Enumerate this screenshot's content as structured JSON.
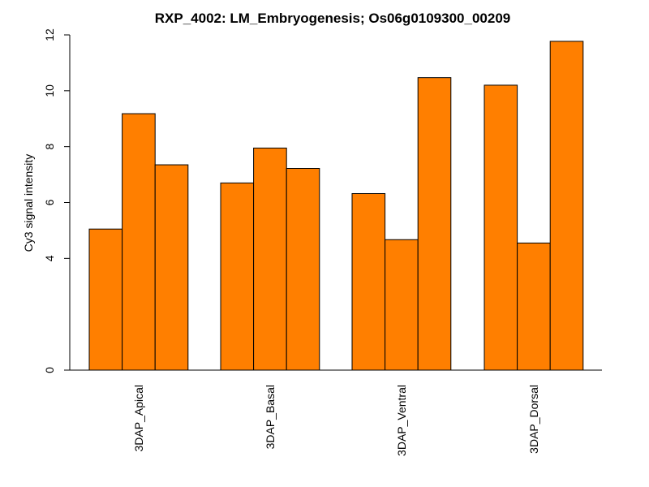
{
  "chart_data": {
    "type": "bar",
    "title": "RXP_4002: LM_Embryogenesis; Os06g0109300_00209",
    "xlabel": "",
    "ylabel": "Cy3 signal intensity",
    "ylim": [
      0,
      12
    ],
    "yticks": [
      0,
      4,
      6,
      8,
      10,
      12
    ],
    "grid": false,
    "bar_color": "#FF7F00",
    "bar_edge_color": "#000000",
    "categories": [
      "3DAP_Apical",
      "3DAP_Basal",
      "3DAP_Ventral",
      "3DAP_Dorsal"
    ],
    "values": [
      [
        5.05,
        9.18,
        7.35
      ],
      [
        6.7,
        7.95,
        7.22
      ],
      [
        6.32,
        4.67,
        10.47
      ],
      [
        10.2,
        4.55,
        11.77
      ]
    ]
  }
}
